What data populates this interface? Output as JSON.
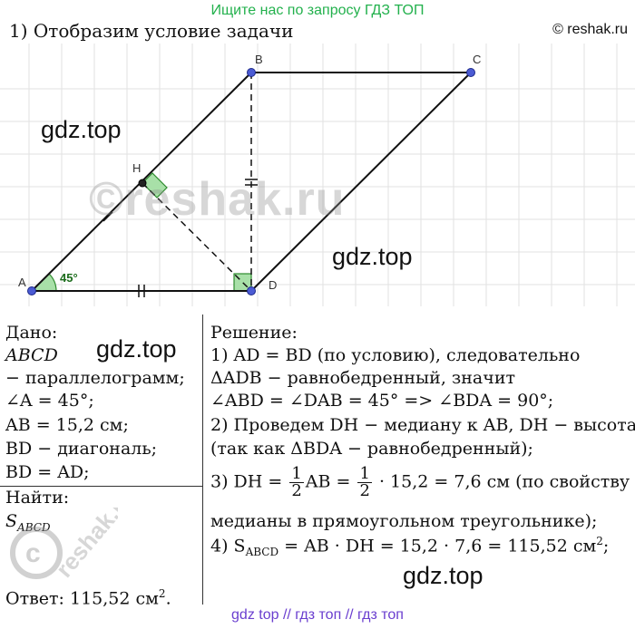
{
  "header": {
    "banner": "Ищите нас по запросу ГДЗ ТОП",
    "step_title": "1) Отобразим условие задачи",
    "copyright": "© reshak.ru"
  },
  "figure": {
    "labels": {
      "A": "A",
      "B": "B",
      "C": "C",
      "D": "D",
      "H": "H",
      "angle": "45°"
    },
    "watermarks": [
      "gdz.top",
      "gdz.top"
    ],
    "reshak_mark": "©reshak.ru",
    "colors": {
      "point": "#4b5bd4",
      "angle_fill": "#a8e0a8",
      "angle_stroke": "#2e8b2e",
      "grid": "#e2e2e2"
    }
  },
  "given": {
    "title": "Дано:",
    "lines": [
      "ABCD",
      "− параллелограмм;",
      "∠A = 45°;",
      "AB = 15,2 см;",
      "BD − диагональ;",
      "BD = AD;"
    ],
    "find_title": "Найти:",
    "find_value": "S",
    "find_sub": "ABCD",
    "answer_prefix": "Ответ: 115,52 см",
    "answer_sup": "2",
    "answer_suffix": ".",
    "watermark": "gdz.top",
    "side_watermark": "reshak.ru"
  },
  "solution": {
    "title": "Решение:",
    "l1": "1) AD = BD (по условию), следовательно",
    "l2": "ΔADB − равнобедренный, значит",
    "l3": "∠ABD = ∠DAB = 45° => ∠BDA = 90°;",
    "l4": "2) Проведем DH − медиану к AB, DH − высота",
    "l5": "(так как ΔBDA − равнобедренный);",
    "l6_a": "3) DH = ",
    "l6_b": "AB = ",
    "l6_c": " · 15,2 = 7,6 см (по свойству",
    "frac_num": "1",
    "frac_den": "2",
    "l7": "медианы в прямоугольном треугольнике);",
    "l8_a": "4) S",
    "l8_sub": "ABCD",
    "l8_b": " = AB · DH = 15,2 · 7,6 = 115,52 см",
    "l8_sup": "2",
    "l8_c": ";",
    "watermark": "gdz.top"
  },
  "footer": {
    "text": "gdz top  //  гдз топ  //  гдз топ"
  }
}
